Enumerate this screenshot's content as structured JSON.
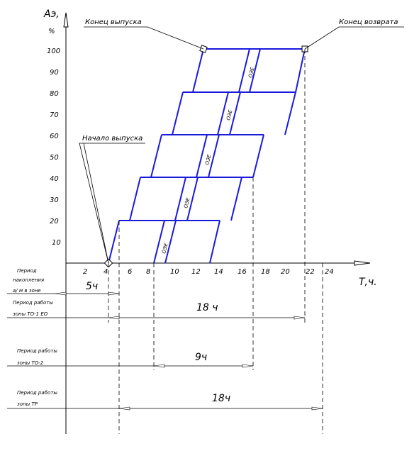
{
  "axes": {
    "y_label": "Аэ,",
    "y_unit": "%",
    "x_label": "Т,ч.",
    "y_ticks": [
      "10",
      "20",
      "30",
      "40",
      "50",
      "60",
      "70",
      "80",
      "90",
      "100"
    ],
    "x_ticks": [
      "2",
      "4",
      "6",
      "8",
      "10",
      "12",
      "14",
      "16",
      "18",
      "20",
      "22",
      "24"
    ]
  },
  "callouts": {
    "release_end": "Конец выпуска",
    "return_end": "Конец возврата",
    "release_start": "Начало выпуска"
  },
  "band_label": "ОЭЕ",
  "periods": [
    {
      "label_lines": [
        "Период",
        "накопления",
        "а/ м в зоне"
      ],
      "duration": "5ч"
    },
    {
      "label_lines": [
        "Период работы",
        "зоны ТО-1 ЕО"
      ],
      "duration": "18 ч"
    },
    {
      "label_lines": [
        "Период работы",
        "зоны ТО-2"
      ],
      "duration": "9ч"
    },
    {
      "label_lines": [
        "Период работы",
        "зоны ТР"
      ],
      "duration": "18ч"
    }
  ],
  "colors": {
    "band": "#1a1adc",
    "line": "#000000"
  }
}
